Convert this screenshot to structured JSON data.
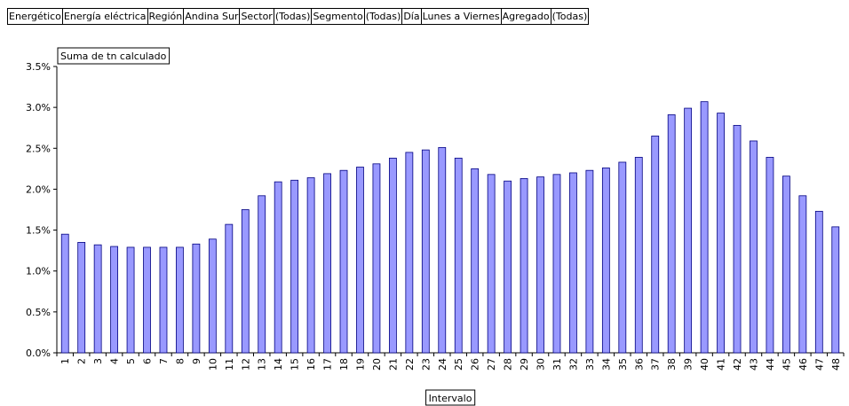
{
  "chart_data": {
    "type": "bar",
    "filters": [
      {
        "field": "Energético",
        "value": "Energía eléctrica"
      },
      {
        "field": "Región",
        "value": "Andina Sur"
      },
      {
        "field": "Sector",
        "value": "(Todas)"
      },
      {
        "field": "Segmento",
        "value": "(Todas)"
      },
      {
        "field": "Día",
        "value": "Lunes a Viernes"
      },
      {
        "field": "Agregado",
        "value": "(Todas)"
      }
    ],
    "y_label": "Suma de tn calculado",
    "x_label": "Intervalo",
    "categories": [
      "1",
      "2",
      "3",
      "4",
      "5",
      "6",
      "7",
      "8",
      "9",
      "10",
      "11",
      "12",
      "13",
      "14",
      "15",
      "16",
      "17",
      "18",
      "19",
      "20",
      "21",
      "22",
      "23",
      "24",
      "25",
      "26",
      "27",
      "28",
      "29",
      "30",
      "31",
      "32",
      "33",
      "34",
      "35",
      "36",
      "37",
      "38",
      "39",
      "40",
      "41",
      "42",
      "43",
      "44",
      "45",
      "46",
      "47",
      "48"
    ],
    "values": [
      1.45,
      1.35,
      1.32,
      1.3,
      1.29,
      1.29,
      1.29,
      1.29,
      1.33,
      1.39,
      1.57,
      1.75,
      1.92,
      2.09,
      2.11,
      2.14,
      2.19,
      2.23,
      2.27,
      2.31,
      2.38,
      2.45,
      2.48,
      2.51,
      2.38,
      2.25,
      2.18,
      2.1,
      2.13,
      2.15,
      2.18,
      2.2,
      2.23,
      2.26,
      2.33,
      2.39,
      2.65,
      2.91,
      2.99,
      3.07,
      2.93,
      2.78,
      2.59,
      2.39,
      2.16,
      1.92,
      1.73,
      1.54
    ],
    "color": "#9999ff",
    "ylim": [
      0,
      3.5
    ],
    "yticks": [
      {
        "value": 0,
        "label": "0.0%"
      },
      {
        "value": 0.5,
        "label": "0.5%"
      },
      {
        "value": 1,
        "label": "1.0%"
      },
      {
        "value": 1.5,
        "label": "1.5%"
      },
      {
        "value": 2,
        "label": "2.0%"
      },
      {
        "value": 2.5,
        "label": "2.5%"
      },
      {
        "value": 3,
        "label": "3.0%"
      },
      {
        "value": 3.5,
        "label": "3.5%"
      }
    ],
    "grid": false
  }
}
